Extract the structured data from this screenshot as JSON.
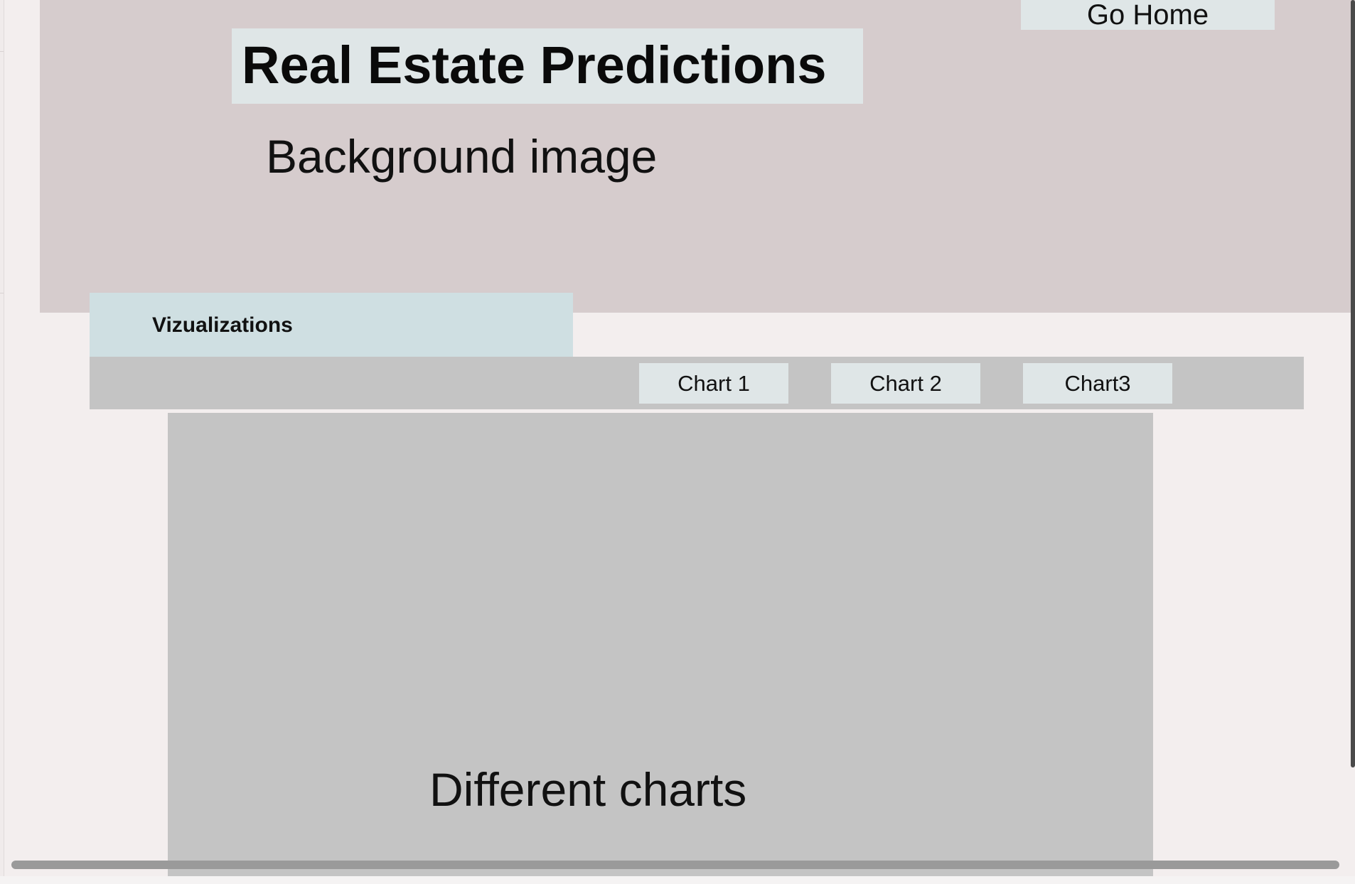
{
  "header": {
    "home_button_label": "Go Home",
    "title": "Real Estate Predictions",
    "background_label": "Background image"
  },
  "visualizations": {
    "tab_label": "Vizualizations",
    "chart_buttons": [
      {
        "label": "Chart 1"
      },
      {
        "label": "Chart 2"
      },
      {
        "label": "Chart3"
      }
    ],
    "chart_area_label": "Different charts"
  },
  "colors": {
    "page_background": "#f3eeee",
    "hero_background": "#d6cccd",
    "button_background": "#dfe6e7",
    "tab_background": "#cfdfe2",
    "panel_gray": "#c4c4c4"
  }
}
